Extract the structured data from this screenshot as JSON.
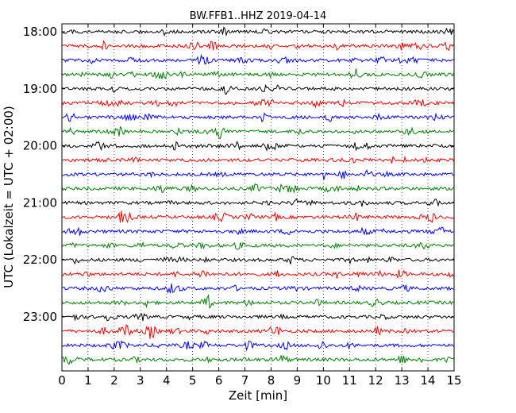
{
  "chart_data": {
    "type": "line",
    "title": "BW.FFB1..HHZ 2019-04-14",
    "xlabel": "Zeit  [min]",
    "ylabel": "UTC (Lokalzeit = UTC + 02:00)",
    "xlim": [
      0,
      15
    ],
    "x_ticks": [
      "0",
      "1",
      "2",
      "3",
      "4",
      "5",
      "6",
      "7",
      "8",
      "9",
      "10",
      "11",
      "12",
      "13",
      "14",
      "15"
    ],
    "y_ticks": [
      "18:00",
      "19:00",
      "20:00",
      "21:00",
      "22:00",
      "23:00"
    ],
    "grid": "vertical dotted",
    "trace_colors": [
      "#000000",
      "#ff0000",
      "#0000ff",
      "#008000"
    ],
    "traces_start": "18:00",
    "trace_interval_min": 15,
    "trace_count": 24
  }
}
